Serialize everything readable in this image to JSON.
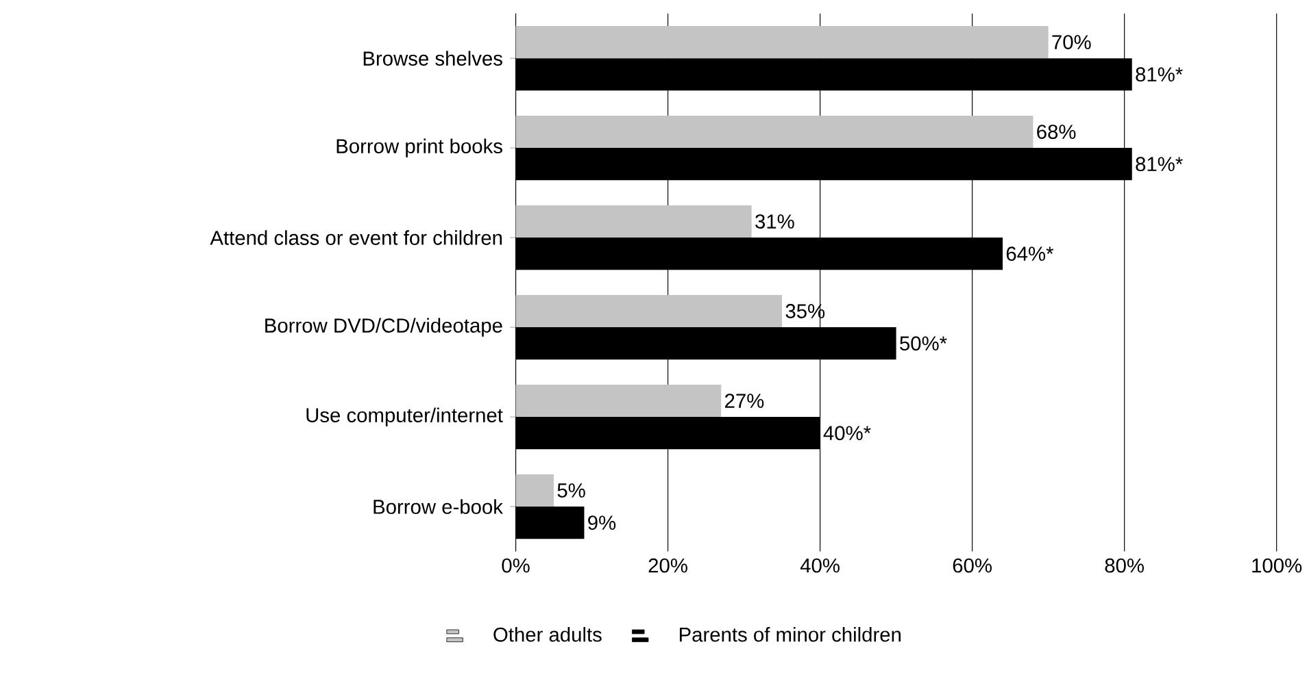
{
  "chart_data": {
    "type": "bar",
    "orientation": "horizontal",
    "categories": [
      "Browse shelves",
      "Borrow print books",
      "Attend class or event for children",
      "Borrow DVD/CD/videotape",
      "Use computer/internet",
      "Borrow e-book"
    ],
    "series": [
      {
        "name": "Other adults",
        "color": "#c4c4c4",
        "values": [
          70,
          68,
          31,
          35,
          27,
          5
        ],
        "value_labels": [
          "70%",
          "68%",
          "31%",
          "35%",
          "27%",
          "5%"
        ]
      },
      {
        "name": "Parents of minor children",
        "color": "#000000",
        "values": [
          81,
          81,
          64,
          50,
          40,
          9
        ],
        "value_labels": [
          "81%*",
          "81%*",
          "64%*",
          "50%*",
          "40%*",
          "9%"
        ]
      }
    ],
    "xlim": [
      0,
      100
    ],
    "xticks": [
      {
        "value": 0,
        "label": "0%"
      },
      {
        "value": 20,
        "label": "20%"
      },
      {
        "value": 40,
        "label": "40%"
      },
      {
        "value": 60,
        "label": "60%"
      },
      {
        "value": 80,
        "label": "80%"
      },
      {
        "value": 100,
        "label": "100%"
      }
    ],
    "grid": "x",
    "legend": "bottom"
  }
}
